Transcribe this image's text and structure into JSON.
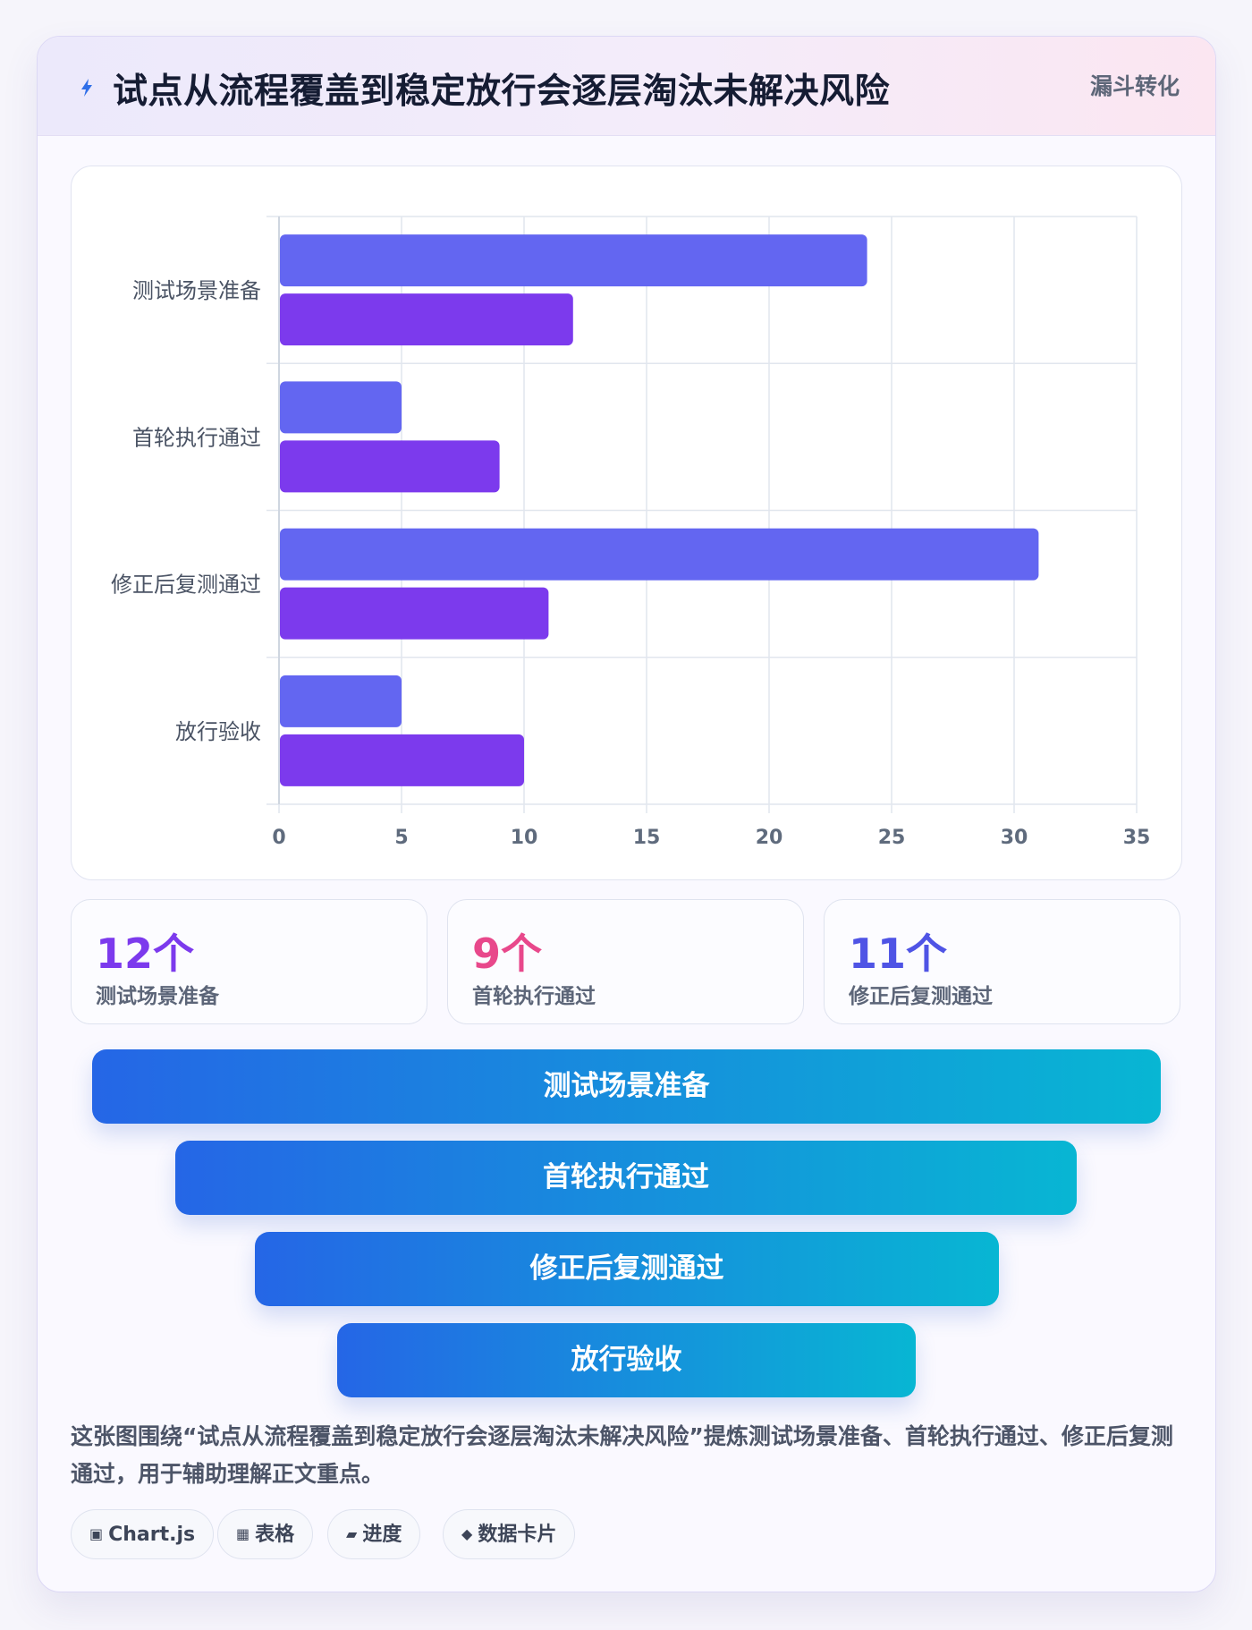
{
  "header": {
    "icon": "lightning-icon",
    "title": "试点从流程覆盖到稳定放行会逐层淘汰未解决风险",
    "tag": "漏斗转化"
  },
  "chart_data": {
    "type": "bar",
    "orientation": "horizontal",
    "categories": [
      "测试场景准备",
      "首轮执行通过",
      "修正后复测通过",
      "放行验收"
    ],
    "series": [
      {
        "values": [
          24,
          5,
          31,
          5
        ],
        "color": "#6366f1"
      },
      {
        "values": [
          12,
          9,
          11,
          10
        ],
        "color": "#7c3aed"
      }
    ],
    "xlim": [
      0,
      35
    ],
    "xticks": [
      0,
      5,
      10,
      15,
      20,
      25,
      30,
      35
    ],
    "grid": true,
    "legend": "none"
  },
  "stats": [
    {
      "value": "12个",
      "label": "测试场景准备",
      "color": "#7c3aed"
    },
    {
      "value": "9个",
      "label": "首轮执行通过",
      "color": "#e8488b"
    },
    {
      "value": "11个",
      "label": "修正后复测通过",
      "color": "#4f54e5"
    }
  ],
  "funnel": [
    "测试场景准备",
    "首轮执行通过",
    "修正后复测通过",
    "放行验收"
  ],
  "description": "这张图围绕“试点从流程覆盖到稳定放行会逐层淘汰未解决风险”提炼测试场景准备、首轮执行通过、修正后复测通过，用于辅助理解正文重点。",
  "chips": [
    {
      "icon": "▣",
      "icon_name": "chart-icon",
      "label": "Chart.js"
    },
    {
      "icon": "▦",
      "icon_name": "table-icon",
      "label": "表格"
    },
    {
      "icon": "▰",
      "icon_name": "progress-icon",
      "label": "进度"
    },
    {
      "icon": "◆",
      "icon_name": "card-icon",
      "label": "数据卡片"
    }
  ]
}
